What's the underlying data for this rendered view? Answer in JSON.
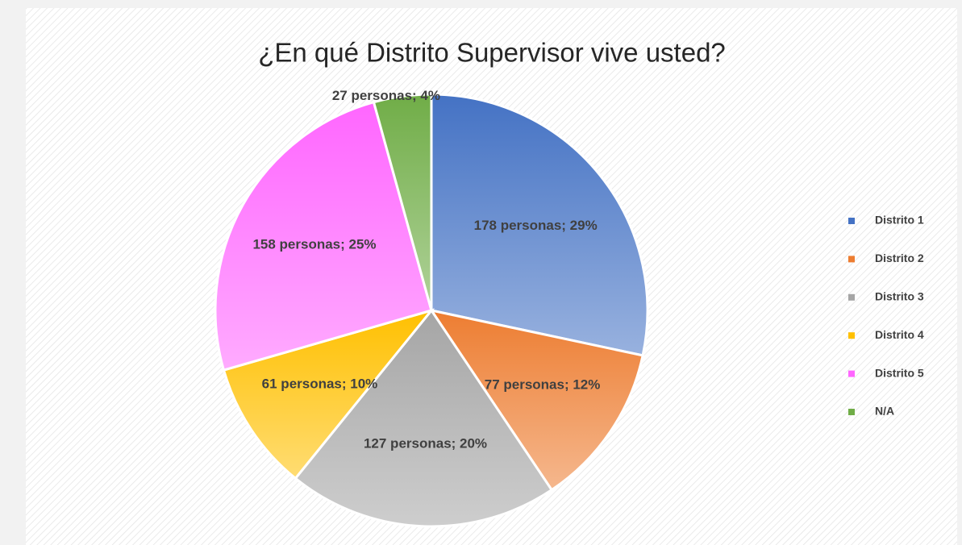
{
  "chart_data": {
    "type": "pie",
    "title": "¿En qué Distrito Supervisor vive usted?",
    "categories": [
      "Distrito 1",
      "Distrito 2",
      "Distrito 3",
      "Distrito 4",
      "Distrito 5",
      "N/A"
    ],
    "values": [
      178,
      77,
      127,
      61,
      158,
      27
    ],
    "value_labels": [
      "178 personas; 29%",
      "77 personas; 12%",
      "127 personas; 20%",
      "61 personas; 10%",
      "158 personas; 25%",
      "27 personas; 4%"
    ],
    "colors": [
      "#4472c4",
      "#ed7d31",
      "#a5a5a5",
      "#ffc000",
      "#ff66ff",
      "#70ad47"
    ],
    "legend": "right"
  }
}
